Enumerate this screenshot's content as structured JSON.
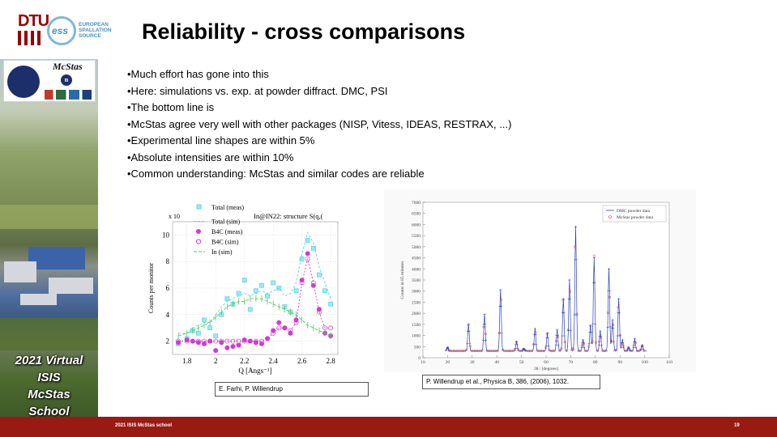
{
  "header": {
    "dtu_logo": "DTU",
    "ess_logo": "ess",
    "ess_words": [
      "EUROPEAN",
      "SPALLATION",
      "SOURCE"
    ],
    "title": "Reliability - cross comparisons"
  },
  "sidebar": {
    "mcstas_logo": "McStas",
    "mcstas_n": "n",
    "school_lines": [
      "2021 Virtual",
      "ISIS",
      "McStas",
      "School"
    ]
  },
  "bullets": [
    "•Much effort has gone into this",
    "•Here: simulations vs. exp. at powder diffract. DMC, PSI",
    "•The bottom line is",
    "•McStas agree very well with other packages (NISP, Vitess, IDEAS, RESTRAX, ...)",
    "•Experimental line shapes are within 5%",
    "•Absolute intensities are within 10%",
    "•Common understanding: McStas and similar codes are reliable"
  ],
  "figure_left": {
    "caption": "E. Farhi, P. Willendrup"
  },
  "figure_right": {
    "caption": "P. Willendrup et al., Physica B, 386, (2006), 1032."
  },
  "footer": {
    "left": "2021 ISIS McStas school",
    "page_number": "19"
  },
  "colors": {
    "footer_bg": "#991a13",
    "dtu_red": "#990000",
    "ess_blue": "#4a8fbf"
  },
  "chart_data": [
    {
      "type": "scatter",
      "title": "In@IN22: structure S(q,(",
      "xlabel": "Q [Angs⁻¹]",
      "ylabel": "Counts per monitor",
      "y_multiplier_label": "x 10",
      "xlim": [
        1.7,
        2.85
      ],
      "ylim": [
        1,
        11
      ],
      "x_ticks": [
        "1.8",
        "2",
        "2.2",
        "2.4",
        "2.6",
        "2.8"
      ],
      "y_ticks": [
        "2",
        "4",
        "6",
        "8",
        "10"
      ],
      "legend": [
        "Total (meas)",
        "Total (sim)",
        "B4C (meas)",
        "B4C (sim)",
        "In (sim)"
      ],
      "x": [
        1.74,
        1.8,
        1.84,
        1.88,
        1.92,
        1.96,
        2.0,
        2.04,
        2.08,
        2.12,
        2.16,
        2.2,
        2.24,
        2.28,
        2.32,
        2.36,
        2.4,
        2.44,
        2.48,
        2.52,
        2.56,
        2.6,
        2.64,
        2.68,
        2.72,
        2.76,
        2.8
      ],
      "series": [
        {
          "name": "Total (meas)",
          "values": [
            1.8,
            2.2,
            2.8,
            2.6,
            3.6,
            3.0,
            2.4,
            4.0,
            5.2,
            4.8,
            5.6,
            6.6,
            4.4,
            5.8,
            6.2,
            5.4,
            6.4,
            6.0,
            4.6,
            4.2,
            5.8,
            8.2,
            9.6,
            9.0,
            7.0,
            5.8,
            4.8
          ]
        },
        {
          "name": "Total (sim)",
          "values": [
            2.6,
            2.6,
            3.0,
            3.2,
            3.4,
            3.4,
            4.0,
            4.6,
            5.0,
            5.2,
            5.4,
            5.6,
            5.4,
            5.6,
            5.8,
            5.6,
            5.8,
            6.0,
            5.4,
            5.6,
            6.4,
            8.6,
            10.2,
            9.4,
            7.6,
            6.4,
            5.2
          ]
        },
        {
          "name": "B4C (meas)",
          "values": [
            1.9,
            2.1,
            2.0,
            1.9,
            1.8,
            2.0,
            1.3,
            1.9,
            1.5,
            1.6,
            1.7,
            2.1,
            2.0,
            1.9,
            1.8,
            2.2,
            2.8,
            3.4,
            3.0,
            2.6,
            3.6,
            6.6,
            8.6,
            6.2,
            4.4,
            2.6,
            2.4
          ]
        },
        {
          "name": "B4C (sim)",
          "values": [
            2.0,
            2.0,
            2.0,
            2.0,
            2.0,
            2.0,
            2.0,
            2.0,
            2.0,
            2.0,
            2.0,
            2.0,
            2.0,
            2.0,
            2.0,
            2.2,
            2.6,
            3.0,
            3.0,
            2.8,
            3.4,
            6.4,
            8.2,
            6.4,
            4.2,
            3.0,
            3.0
          ]
        },
        {
          "name": "In (sim)",
          "values": [
            2.4,
            2.6,
            2.8,
            3.0,
            3.2,
            3.4,
            3.8,
            4.2,
            4.6,
            4.8,
            5.0,
            5.0,
            5.2,
            5.2,
            5.2,
            5.0,
            4.8,
            4.6,
            4.4,
            4.2,
            4.0,
            3.6,
            3.2,
            3.0,
            2.8,
            2.6,
            2.4
          ]
        }
      ]
    },
    {
      "type": "line",
      "xlabel": "2θ / [degrees]",
      "ylabel": "Counts in 85 minutes",
      "xlim": [
        10,
        110
      ],
      "ylim": [
        0,
        7000
      ],
      "x_ticks": [
        "10",
        "20",
        "30",
        "40",
        "50",
        "60",
        "70",
        "80",
        "90",
        "100",
        "110"
      ],
      "y_ticks": [
        "0",
        "500",
        "1000",
        "1500",
        "2000",
        "2500",
        "3000",
        "3500",
        "4000",
        "4500",
        "5000",
        "5500",
        "6000",
        "6500",
        "7000"
      ],
      "legend": [
        "DMC powder data",
        "McStas powder data"
      ],
      "peaks": [
        {
          "x": 20.0,
          "y": 450
        },
        {
          "x": 28.5,
          "y": 1500
        },
        {
          "x": 35.0,
          "y": 1950
        },
        {
          "x": 41.5,
          "y": 3050
        },
        {
          "x": 48.0,
          "y": 700
        },
        {
          "x": 51.0,
          "y": 400
        },
        {
          "x": 55.5,
          "y": 1300
        },
        {
          "x": 60.5,
          "y": 1100
        },
        {
          "x": 64.5,
          "y": 1250
        },
        {
          "x": 67.0,
          "y": 2650
        },
        {
          "x": 69.5,
          "y": 3500
        },
        {
          "x": 72.0,
          "y": 5900
        },
        {
          "x": 75.0,
          "y": 800
        },
        {
          "x": 78.0,
          "y": 1450
        },
        {
          "x": 79.5,
          "y": 4500
        },
        {
          "x": 82.0,
          "y": 1200
        },
        {
          "x": 85.5,
          "y": 4000
        },
        {
          "x": 87.0,
          "y": 1700
        },
        {
          "x": 89.5,
          "y": 2650
        },
        {
          "x": 91.0,
          "y": 800
        },
        {
          "x": 93.5,
          "y": 450
        },
        {
          "x": 96.0,
          "y": 850
        },
        {
          "x": 99.0,
          "y": 550
        }
      ],
      "baseline": 300,
      "series": [
        {
          "name": "DMC powder data",
          "color": "#2b3fbf"
        },
        {
          "name": "McStas powder data",
          "color": "#d23a3a"
        }
      ]
    }
  ]
}
